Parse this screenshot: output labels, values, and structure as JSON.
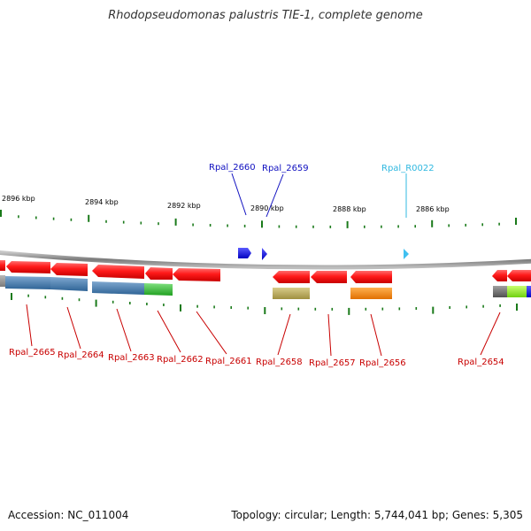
{
  "title": "Rhodopseudomonas palustris TIE-1, complete genome",
  "footer": {
    "accession": "Accession: NC_011004",
    "summary": "Topology: circular; Length: 5,744,041 bp; Genes: 5,305"
  },
  "colors": {
    "backbone": "#8c8c8c",
    "tick": "#1a7a1a",
    "forward_label": "#1010c0",
    "rna_label": "#30b8e0",
    "reverse_label": "#c80000",
    "leader_line": "#c80000"
  },
  "scale_labels": [
    "2896 kbp",
    "2894 kbp",
    "2892 kbp",
    "2890 kbp",
    "2888 kbp",
    "2886 kbp"
  ],
  "forward_genes": [
    {
      "name": "Rpal_2660",
      "color": "#1010e0"
    },
    {
      "name": "Rpal_2659",
      "color": "#1010e0"
    },
    {
      "name": "Rpal_R0022",
      "color": "#40c0f0"
    }
  ],
  "reverse_genes": [
    {
      "name": "Rpal_2665"
    },
    {
      "name": "Rpal_2664"
    },
    {
      "name": "Rpal_2663"
    },
    {
      "name": "Rpal_2662"
    },
    {
      "name": "Rpal_2661"
    },
    {
      "name": "Rpal_2658"
    },
    {
      "name": "Rpal_2657"
    },
    {
      "name": "Rpal_2656"
    },
    {
      "name": "Rpal_2654"
    }
  ],
  "cog_colors": {
    "steel": "#3a73a8",
    "green": "#30c030",
    "khaki": "#b0a050",
    "orange": "#f08000",
    "gray": "#606060",
    "lime": "#90f020",
    "blue": "#1010d0"
  }
}
